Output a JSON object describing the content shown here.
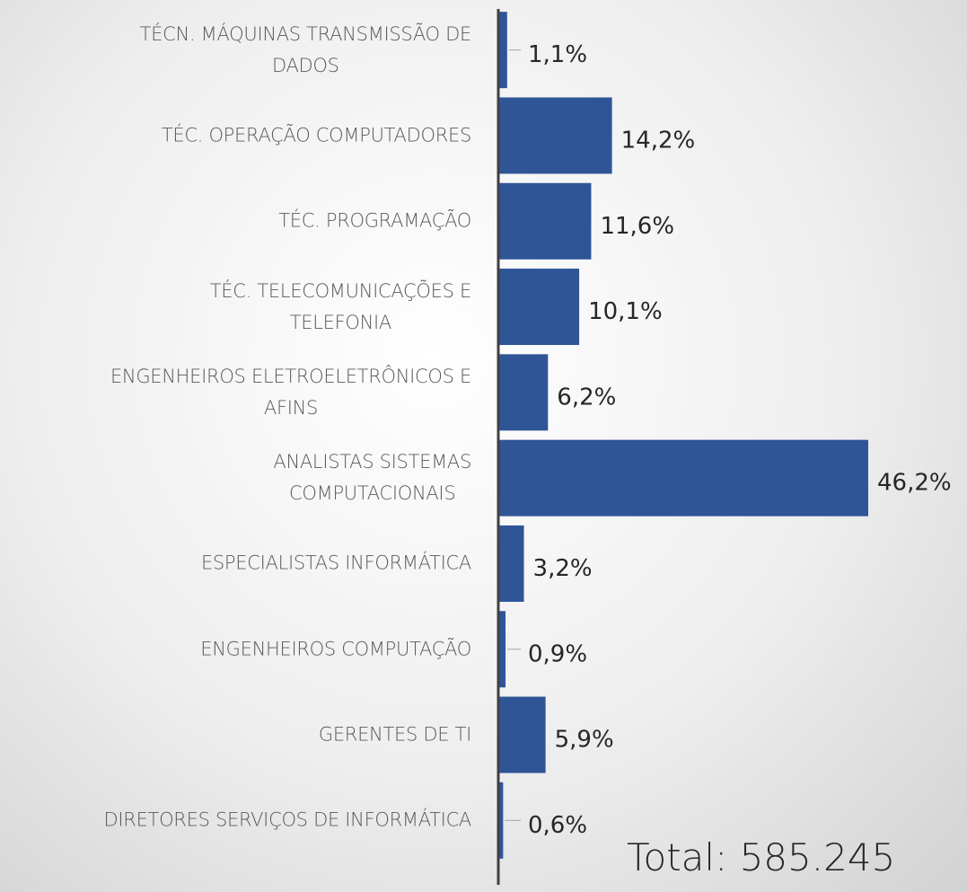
{
  "chart_data": {
    "type": "hbar",
    "categories": [
      "TÉCN. MÁQUINAS TRANSMISSÃO DE\nDADOS",
      "TÉC. OPERAÇÃO COMPUTADORES",
      "TÉC. PROGRAMAÇÃO",
      "TÉC. TELECOMUNICAÇÕES E\nTELEFONIA",
      "ENGENHEIROS ELETROELETRÔNICOS E\nAFINS",
      "ANALISTAS SISTEMAS\nCOMPUTACIONAIS",
      "ESPECIALISTAS INFORMÁTICA",
      "ENGENHEIROS COMPUTAÇÃO",
      "GERENTES DE TI",
      "DIRETORES SERVIÇOS DE INFORMÁTICA"
    ],
    "values": [
      1.1,
      14.2,
      11.6,
      10.1,
      6.2,
      46.2,
      3.2,
      0.9,
      5.9,
      0.6
    ],
    "value_labels": [
      "1,1%",
      "14,2%",
      "11,6%",
      "10,1%",
      "6,2%",
      "46,2%",
      "3,2%",
      "0,9%",
      "5,9%",
      "0,6%"
    ],
    "color": "#2f5597",
    "annotation": "Total: 585.245"
  }
}
